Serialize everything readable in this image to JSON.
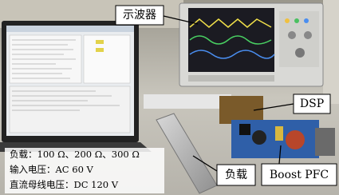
{
  "labels": {
    "oscilloscope": "示波器",
    "dsp": "DSP",
    "load": "负载",
    "boost_pfc": "Boost PFC"
  },
  "notes": [
    "负载：100 Ω、200 Ω、300 Ω",
    "输入电压：AC 60 V",
    "直流母线电压：DC 120 V"
  ]
}
